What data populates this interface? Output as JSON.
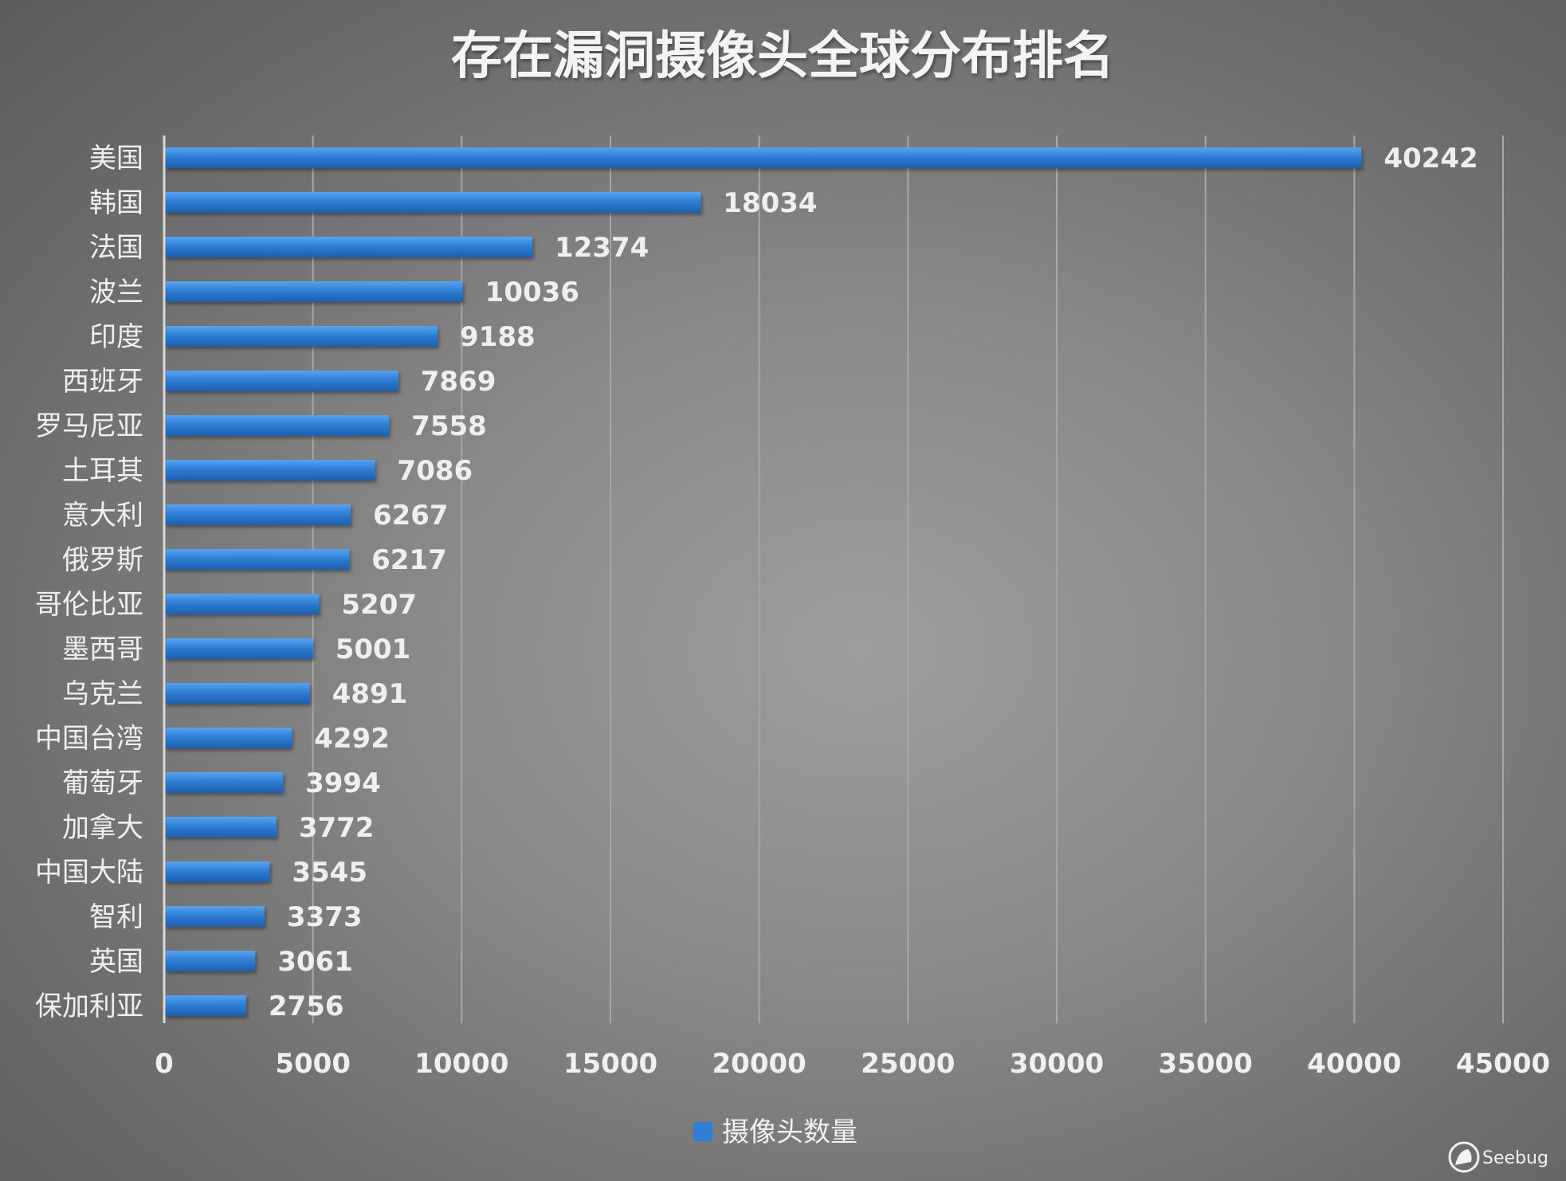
{
  "colors": {
    "bar": "#2f7fd6",
    "bar_highlight": "#5aa3ee",
    "grid": "#a7a7a7",
    "axis": "#d8d8d8"
  },
  "watermark": {
    "text": "Seebug",
    "icon": "seebug-logo-icon"
  },
  "chart_data": {
    "type": "bar",
    "orientation": "horizontal",
    "title": "存在漏洞摄像头全球分布排名",
    "categories": [
      "美国",
      "韩国",
      "法国",
      "波兰",
      "印度",
      "西班牙",
      "罗马尼亚",
      "土耳其",
      "意大利",
      "俄罗斯",
      "哥伦比亚",
      "墨西哥",
      "乌克兰",
      "中国台湾",
      "葡萄牙",
      "加拿大",
      "中国大陆",
      "智利",
      "英国",
      "保加利亚"
    ],
    "series": [
      {
        "name": "摄像头数量",
        "values": [
          40242,
          18034,
          12374,
          10036,
          9188,
          7869,
          7558,
          7086,
          6267,
          6217,
          5207,
          5001,
          4891,
          4292,
          3994,
          3772,
          3545,
          3373,
          3061,
          2756
        ],
        "value_labels": [
          "40242",
          "18034",
          "12374",
          "10036",
          "9188",
          "7869",
          "7558",
          "7086",
          "6267",
          "6217",
          "5207",
          "5001",
          "4891",
          "4292",
          "3994",
          "3772",
          "3545",
          "3373",
          "3061",
          "2756"
        ]
      }
    ],
    "xlim": [
      0,
      45000
    ],
    "xticks": [
      0,
      5000,
      10000,
      15000,
      20000,
      25000,
      30000,
      35000,
      40000,
      45000
    ],
    "xtick_labels": [
      "0",
      "5000",
      "10000",
      "15000",
      "20000",
      "25000",
      "30000",
      "35000",
      "40000",
      "45000"
    ],
    "xlabel": "",
    "ylabel": "",
    "grid": "vertical",
    "legend": {
      "position": "bottom-center",
      "entries": [
        "摄像头数量"
      ]
    }
  }
}
